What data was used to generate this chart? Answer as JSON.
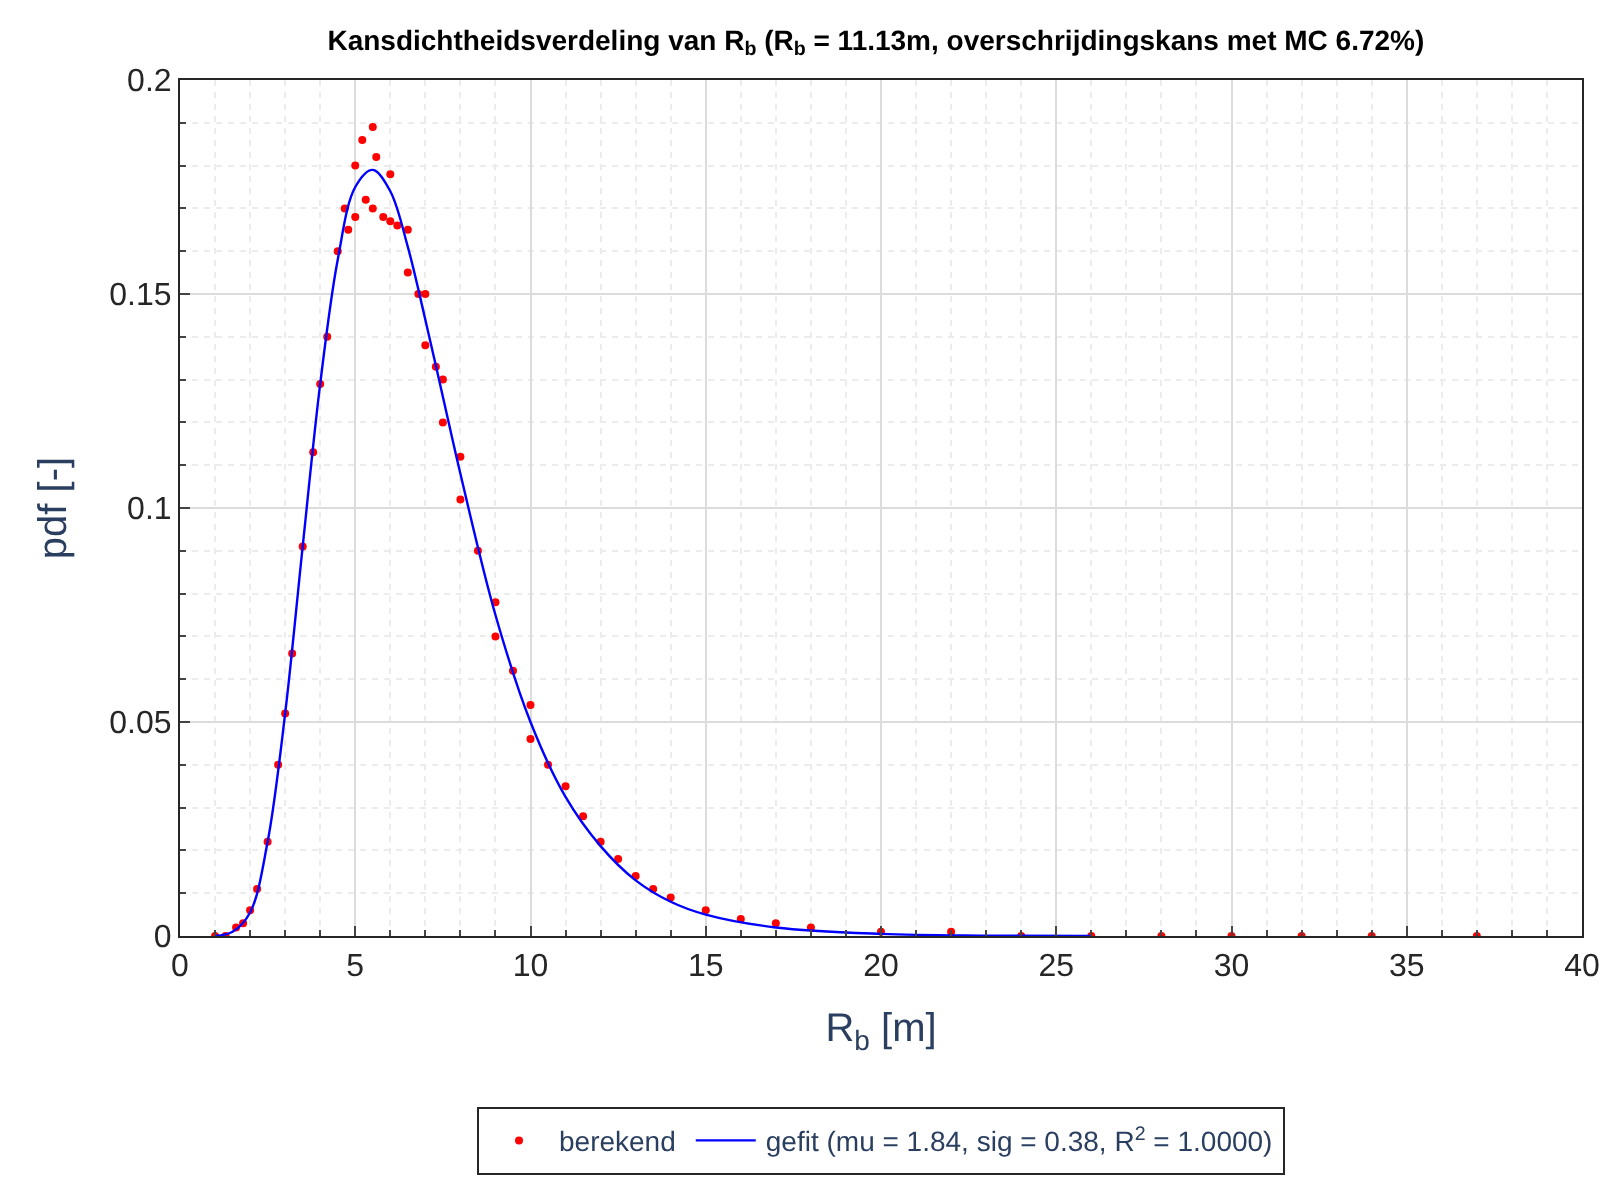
{
  "chart_data": {
    "type": "scatter",
    "title": "Kansdichtheidsverdeling van R$_{b}$ (R$_{b}$ = 11.13m, overschrijdingskans met MC 6.72%)",
    "xlabel": "R$_{b}$ [m]",
    "ylabel": "pdf [-]",
    "xlim": [
      0,
      40
    ],
    "xticks": [
      0,
      5,
      10,
      15,
      20,
      25,
      30,
      35,
      40
    ],
    "ylim": [
      0,
      0.2
    ],
    "yticks": [
      0,
      0.05,
      0.1,
      0.15,
      0.2
    ],
    "grid": true,
    "legend": "bottom",
    "series": [
      {
        "name": "berekend",
        "marker": "circle",
        "color": "#ff0000",
        "x": [
          1,
          1.3,
          1.6,
          1.8,
          2,
          2.2,
          2.5,
          2.8,
          3,
          3.2,
          3.5,
          3.8,
          4,
          4.2,
          4.5,
          4.7,
          4.8,
          5,
          5,
          5.2,
          5.3,
          5.5,
          5.5,
          5.6,
          5.8,
          6,
          6,
          6.2,
          6.5,
          6.5,
          6.8,
          7,
          7,
          7.3,
          7.5,
          7.5,
          8,
          8,
          8.5,
          9,
          9,
          9.5,
          10,
          10,
          10.5,
          11,
          11.5,
          12,
          12.5,
          13,
          13.5,
          14,
          15,
          16,
          17,
          18,
          20,
          22,
          24,
          26,
          28,
          30,
          32,
          34,
          37
        ],
        "values": [
          0,
          0,
          0.002,
          0.003,
          0.006,
          0.011,
          0.022,
          0.04,
          0.052,
          0.066,
          0.091,
          0.113,
          0.129,
          0.14,
          0.16,
          0.17,
          0.165,
          0.18,
          0.168,
          0.186,
          0.172,
          0.189,
          0.17,
          0.182,
          0.168,
          0.178,
          0.167,
          0.166,
          0.165,
          0.155,
          0.15,
          0.15,
          0.138,
          0.133,
          0.13,
          0.12,
          0.112,
          0.102,
          0.09,
          0.078,
          0.07,
          0.062,
          0.054,
          0.046,
          0.04,
          0.035,
          0.028,
          0.022,
          0.018,
          0.014,
          0.011,
          0.009,
          0.006,
          0.004,
          0.003,
          0.002,
          0.001,
          0.001,
          0,
          0,
          0,
          0,
          0,
          0,
          0
        ]
      },
      {
        "name": "gefit (mu = 1.84, sig = 0.38, R$^{2}$ = 1.0000)",
        "type": "line",
        "marker": "none",
        "line_style": "solid",
        "color": "#0000ff",
        "x": [
          1,
          1.5,
          2,
          2.5,
          3,
          3.5,
          4,
          4.5,
          5,
          5.5,
          6,
          6.5,
          7,
          7.5,
          8,
          9,
          10,
          11,
          12,
          13,
          14,
          15,
          17,
          20,
          23,
          26
        ],
        "values": [
          0,
          0.001,
          0.0055,
          0.022,
          0.052,
          0.091,
          0.129,
          0.158,
          0.175,
          0.179,
          0.174,
          0.161,
          0.144,
          0.126,
          0.108,
          0.075,
          0.05,
          0.0325,
          0.021,
          0.013,
          0.008,
          0.005,
          0.002,
          0.0005,
          0.0001,
          0
        ]
      }
    ]
  }
}
